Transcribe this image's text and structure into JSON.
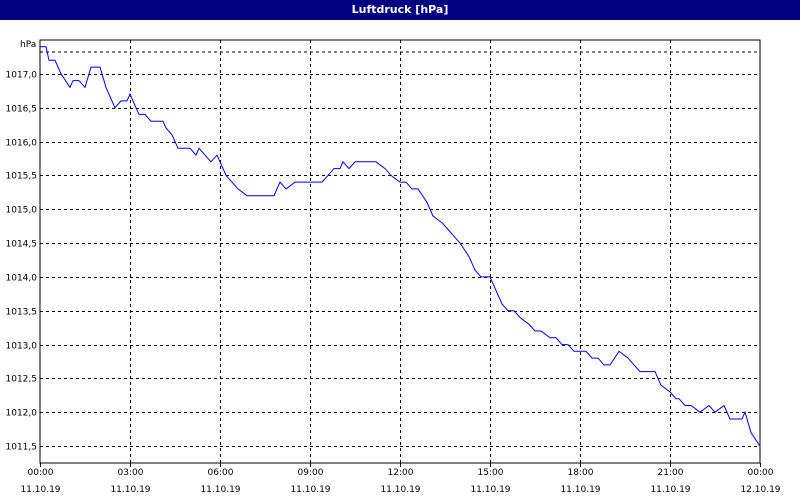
{
  "window": {
    "title": "Luftdruck [hPa]"
  },
  "chart_data": {
    "type": "line",
    "title": "Luftdruck [hPa]",
    "ylabel": "hPa",
    "xlabel": "",
    "ylim": [
      1011.25,
      1017.5
    ],
    "xlim": [
      0,
      24
    ],
    "grid": true,
    "legend": "none",
    "line_color": "#0000ff",
    "y_ticks": [
      1011.5,
      1012.0,
      1012.5,
      1013.0,
      1013.5,
      1014.0,
      1014.5,
      1015.0,
      1015.5,
      1016.0,
      1016.5,
      1017.0
    ],
    "y_tick_labels": [
      "1011,5",
      "1012,0",
      "1012,5",
      "1013,0",
      "1013,5",
      "1014,0",
      "1014,5",
      "1015,0",
      "1015,5",
      "1016,0",
      "1016,5",
      "1017,0"
    ],
    "x_ticks": [
      0,
      3,
      6,
      9,
      12,
      15,
      18,
      21,
      24
    ],
    "x_tick_time": [
      "00:00",
      "03:00",
      "06:00",
      "09:00",
      "12:00",
      "15:00",
      "18:00",
      "21:00",
      "00:00"
    ],
    "x_tick_date": [
      "11.10.19",
      "11.10.19",
      "11.10.19",
      "11.10.19",
      "11.10.19",
      "11.10.19",
      "11.10.19",
      "11.10.19",
      "12.10.19"
    ],
    "series": [
      {
        "x": [
          0.0,
          0.2,
          0.3,
          0.5,
          0.7,
          1.0,
          1.1,
          1.3,
          1.5,
          1.7,
          1.8,
          2.0,
          2.2,
          2.4,
          2.5,
          2.7,
          2.8,
          2.9,
          3.0,
          3.2,
          3.3,
          3.5,
          3.7,
          3.8,
          4.1,
          4.2,
          4.4,
          4.6,
          4.7,
          5.0,
          5.2,
          5.3,
          5.5,
          5.7,
          5.9,
          6.0,
          6.2,
          6.4,
          6.6,
          6.9,
          7.1,
          7.3,
          7.6,
          7.8,
          8.0,
          8.2,
          8.5,
          8.7,
          9.0,
          9.2,
          9.4,
          9.6,
          9.8,
          10.0,
          10.1,
          10.3,
          10.5,
          10.7,
          11.0,
          11.2,
          11.5,
          11.7,
          12.0,
          12.2,
          12.4,
          12.6,
          12.9,
          13.1,
          13.4,
          13.6,
          13.8,
          14.0,
          14.3,
          14.5,
          14.7,
          15.0,
          15.2,
          15.4,
          15.6,
          15.8,
          16.0,
          16.3,
          16.5,
          16.7,
          17.0,
          17.2,
          17.4,
          17.6,
          17.8,
          18.0,
          18.2,
          18.4,
          18.6,
          18.8,
          19.0,
          19.3,
          19.6,
          19.8,
          20.0,
          20.2,
          20.5,
          20.6,
          20.7,
          21.0,
          21.2,
          21.3,
          21.5,
          21.7,
          22.0,
          22.3,
          22.5,
          22.8,
          23.0,
          23.2,
          23.4,
          23.5,
          23.7,
          24.0
        ],
        "y": [
          1017.4,
          1017.4,
          1017.2,
          1017.2,
          1017.0,
          1016.8,
          1016.9,
          1016.9,
          1016.8,
          1017.1,
          1017.1,
          1017.1,
          1016.8,
          1016.6,
          1016.5,
          1016.6,
          1016.6,
          1016.6,
          1016.7,
          1016.5,
          1016.4,
          1016.4,
          1016.3,
          1016.3,
          1016.3,
          1016.2,
          1016.1,
          1015.9,
          1015.9,
          1015.9,
          1015.8,
          1015.9,
          1015.8,
          1015.7,
          1015.8,
          1015.7,
          1015.5,
          1015.4,
          1015.3,
          1015.2,
          1015.2,
          1015.2,
          1015.2,
          1015.2,
          1015.4,
          1015.3,
          1015.4,
          1015.4,
          1015.4,
          1015.4,
          1015.4,
          1015.5,
          1015.6,
          1015.6,
          1015.7,
          1015.6,
          1015.7,
          1015.7,
          1015.7,
          1015.7,
          1015.6,
          1015.5,
          1015.4,
          1015.4,
          1015.3,
          1015.3,
          1015.1,
          1014.9,
          1014.8,
          1014.7,
          1014.6,
          1014.5,
          1014.3,
          1014.1,
          1014.0,
          1014.0,
          1013.8,
          1013.6,
          1013.5,
          1013.5,
          1013.4,
          1013.3,
          1013.2,
          1013.2,
          1013.1,
          1013.1,
          1013.0,
          1013.0,
          1012.9,
          1012.9,
          1012.9,
          1012.8,
          1012.8,
          1012.7,
          1012.7,
          1012.9,
          1012.8,
          1012.7,
          1012.6,
          1012.6,
          1012.6,
          1012.5,
          1012.4,
          1012.3,
          1012.2,
          1012.2,
          1012.1,
          1012.1,
          1012.0,
          1012.1,
          1012.0,
          1012.1,
          1011.9,
          1011.9,
          1011.9,
          1012.0,
          1011.7,
          1011.5
        ]
      }
    ]
  }
}
